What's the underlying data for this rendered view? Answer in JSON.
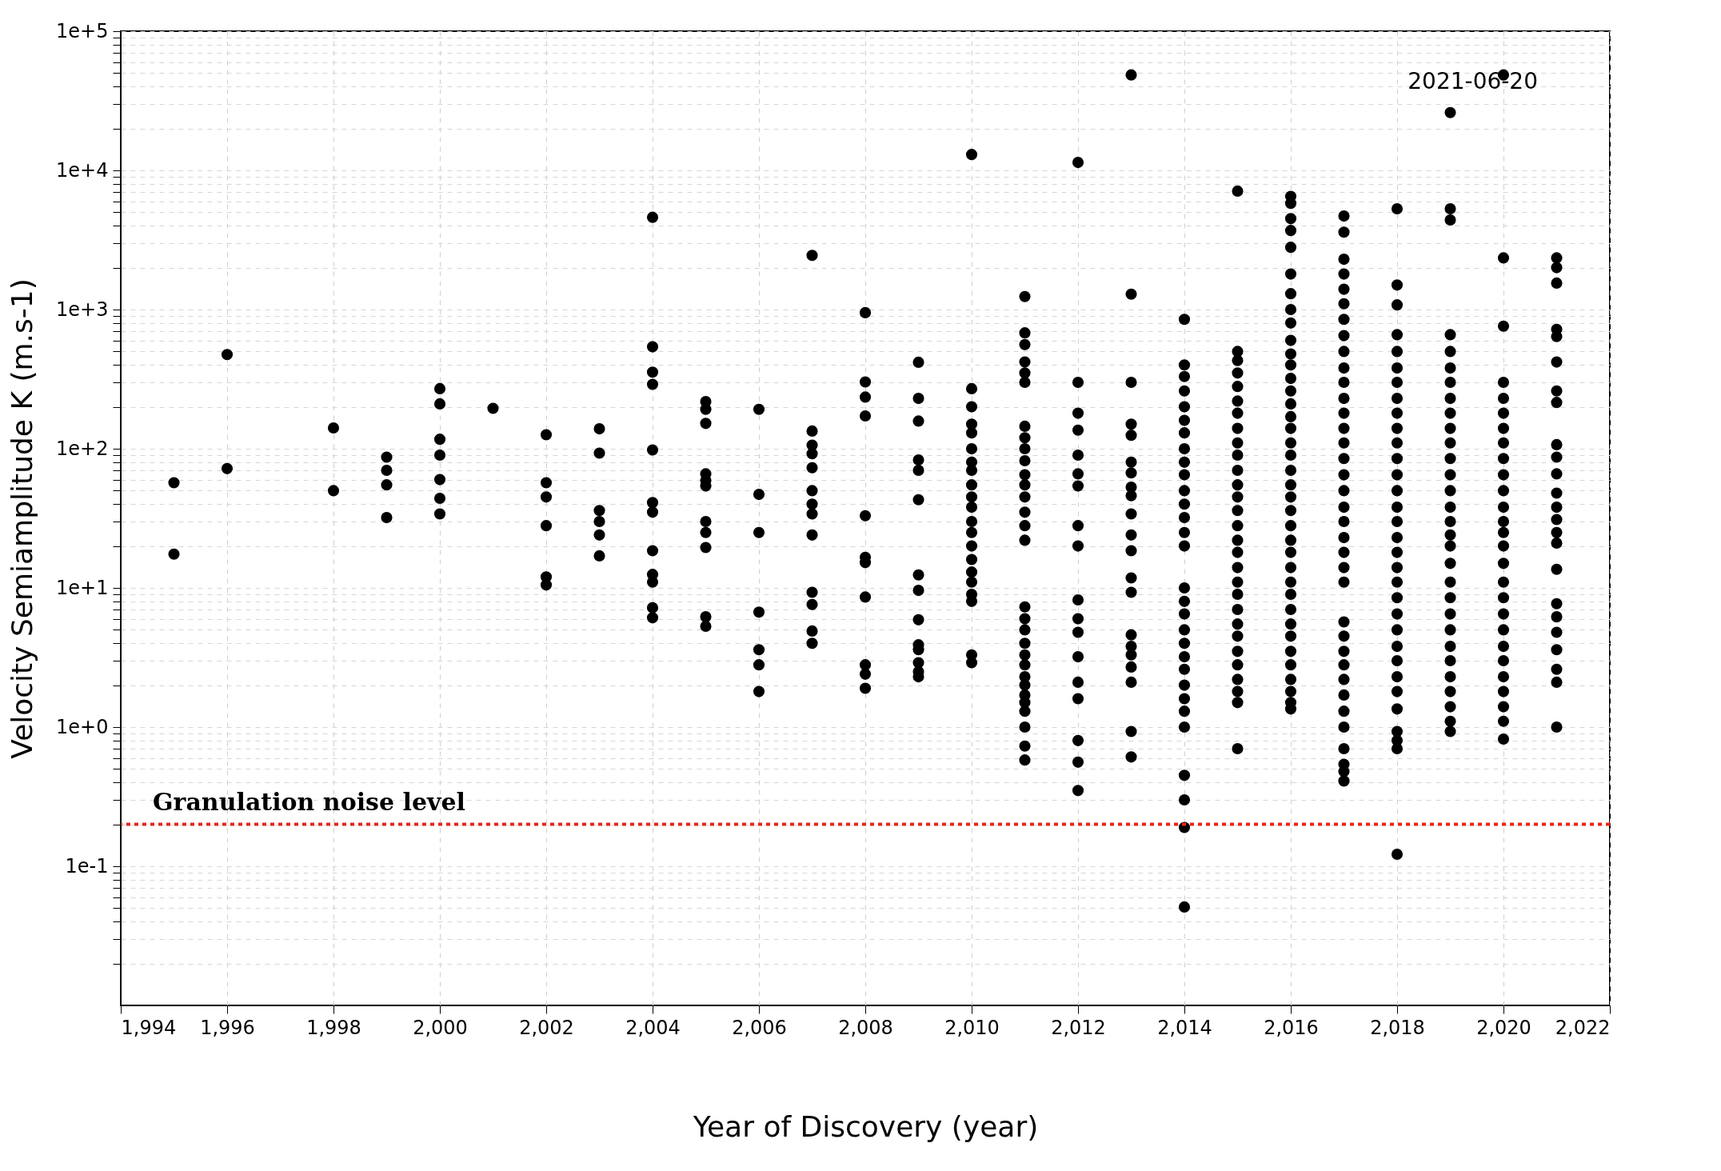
{
  "chart_data": {
    "type": "scatter",
    "xlabel": "Year of Discovery (year)",
    "ylabel": "Velocity Semiamplitude K (m.s-1)",
    "log": "y",
    "grid": true,
    "marker": "circle",
    "xlim": [
      1994,
      2022
    ],
    "xticks": [
      {
        "value": 1994,
        "label": "1,994"
      },
      {
        "value": 1996,
        "label": "1,996"
      },
      {
        "value": 1998,
        "label": "1,998"
      },
      {
        "value": 2000,
        "label": "2,000"
      },
      {
        "value": 2002,
        "label": "2,002"
      },
      {
        "value": 2004,
        "label": "2,004"
      },
      {
        "value": 2006,
        "label": "2,006"
      },
      {
        "value": 2008,
        "label": "2,008"
      },
      {
        "value": 2010,
        "label": "2,010"
      },
      {
        "value": 2012,
        "label": "2,012"
      },
      {
        "value": 2014,
        "label": "2,014"
      },
      {
        "value": 2016,
        "label": "2,016"
      },
      {
        "value": 2018,
        "label": "2,018"
      },
      {
        "value": 2020,
        "label": "2,020"
      },
      {
        "value": 2022,
        "label": "2,022"
      }
    ],
    "ylim": [
      0.01,
      100000
    ],
    "yticks": [
      {
        "value": 0.02,
        "label": null
      },
      {
        "value": 0.03,
        "label": null
      },
      {
        "value": 0.04,
        "label": null
      },
      {
        "value": 0.05,
        "label": null
      },
      {
        "value": 0.06,
        "label": null
      },
      {
        "value": 0.07,
        "label": null
      },
      {
        "value": 0.08,
        "label": null
      },
      {
        "value": 0.09,
        "label": null
      },
      {
        "value": 0.1,
        "label": "1e-1"
      },
      {
        "value": 0.2,
        "label": null
      },
      {
        "value": 0.3,
        "label": null
      },
      {
        "value": 0.4,
        "label": null
      },
      {
        "value": 0.5,
        "label": null
      },
      {
        "value": 0.6,
        "label": null
      },
      {
        "value": 0.7,
        "label": null
      },
      {
        "value": 0.8,
        "label": null
      },
      {
        "value": 0.9,
        "label": null
      },
      {
        "value": 1,
        "label": "1e+0"
      },
      {
        "value": 2,
        "label": null
      },
      {
        "value": 3,
        "label": null
      },
      {
        "value": 4,
        "label": null
      },
      {
        "value": 5,
        "label": null
      },
      {
        "value": 6,
        "label": null
      },
      {
        "value": 7,
        "label": null
      },
      {
        "value": 8,
        "label": null
      },
      {
        "value": 9,
        "label": null
      },
      {
        "value": 10,
        "label": "1e+1"
      },
      {
        "value": 20,
        "label": null
      },
      {
        "value": 30,
        "label": null
      },
      {
        "value": 40,
        "label": null
      },
      {
        "value": 50,
        "label": null
      },
      {
        "value": 60,
        "label": null
      },
      {
        "value": 70,
        "label": null
      },
      {
        "value": 80,
        "label": null
      },
      {
        "value": 90,
        "label": null
      },
      {
        "value": 100,
        "label": "1e+2"
      },
      {
        "value": 200,
        "label": null
      },
      {
        "value": 300,
        "label": null
      },
      {
        "value": 400,
        "label": null
      },
      {
        "value": 500,
        "label": null
      },
      {
        "value": 600,
        "label": null
      },
      {
        "value": 700,
        "label": null
      },
      {
        "value": 800,
        "label": null
      },
      {
        "value": 900,
        "label": null
      },
      {
        "value": 1000,
        "label": "1e+3"
      },
      {
        "value": 2000,
        "label": null
      },
      {
        "value": 3000,
        "label": null
      },
      {
        "value": 4000,
        "label": null
      },
      {
        "value": 5000,
        "label": null
      },
      {
        "value": 6000,
        "label": null
      },
      {
        "value": 7000,
        "label": null
      },
      {
        "value": 8000,
        "label": null
      },
      {
        "value": 9000,
        "label": null
      },
      {
        "value": 10000,
        "label": "1e+4"
      },
      {
        "value": 20000,
        "label": null
      },
      {
        "value": 30000,
        "label": null
      },
      {
        "value": 40000,
        "label": null
      },
      {
        "value": 50000,
        "label": null
      },
      {
        "value": 60000,
        "label": null
      },
      {
        "value": 70000,
        "label": null
      },
      {
        "value": 80000,
        "label": null
      },
      {
        "value": 90000,
        "label": null
      },
      {
        "value": 100000,
        "label": "1e+5"
      }
    ],
    "ref_lines": [
      {
        "axis": "y",
        "value": 0.2,
        "label": "Granulation noise level",
        "color": "#e8261c",
        "line_style": "dotted"
      }
    ],
    "annotations": [
      "2021-06-20"
    ],
    "series": [
      {
        "color": "#000000",
        "x": [
          1995,
          1995
        ],
        "values": [
          57,
          17.5
        ]
      },
      {
        "color": "#000000",
        "x": [
          1996,
          1996
        ],
        "values": [
          475,
          72
        ]
      },
      {
        "color": "#000000",
        "x": [
          1998,
          1998
        ],
        "values": [
          141,
          50
        ]
      },
      {
        "color": "#000000",
        "x": [
          1999,
          1999,
          1999,
          1999
        ],
        "values": [
          87,
          70,
          55,
          32
        ]
      },
      {
        "color": "#000000",
        "x": [
          2000,
          2000,
          2000,
          2000,
          2000,
          2000,
          2000
        ],
        "values": [
          270,
          210,
          117,
          90,
          60,
          44,
          34
        ]
      },
      {
        "color": "#000000",
        "x": [
          2001
        ],
        "values": [
          195
        ]
      },
      {
        "color": "#000000",
        "x": [
          2002,
          2002,
          2002,
          2002,
          2002,
          2002
        ],
        "values": [
          126,
          57,
          45,
          28,
          12,
          10.5
        ]
      },
      {
        "color": "#000000",
        "x": [
          2003,
          2003,
          2003,
          2003,
          2003,
          2003
        ],
        "values": [
          139,
          93,
          36,
          30,
          24,
          17
        ]
      },
      {
        "color": "#000000",
        "x": [
          2004,
          2004,
          2004,
          2004,
          2004,
          2004,
          2004,
          2004,
          2004,
          2004,
          2004,
          2004
        ],
        "values": [
          4600,
          540,
          355,
          290,
          98,
          41,
          35,
          18.5,
          12.5,
          11,
          7.2,
          6.1
        ]
      },
      {
        "color": "#000000",
        "x": [
          2005,
          2005,
          2005,
          2005,
          2005,
          2005,
          2005,
          2005,
          2005,
          2005,
          2005
        ],
        "values": [
          218,
          192,
          152,
          66,
          59,
          54,
          30,
          25,
          19.5,
          6.2,
          5.3
        ]
      },
      {
        "color": "#000000",
        "x": [
          2006,
          2006,
          2006,
          2006,
          2006,
          2006,
          2006
        ],
        "values": [
          192,
          47,
          25,
          6.7,
          3.6,
          2.8,
          1.8
        ]
      },
      {
        "color": "#000000",
        "x": [
          2007,
          2007,
          2007,
          2007,
          2007,
          2007,
          2007,
          2007,
          2007,
          2007,
          2007,
          2007,
          2007
        ],
        "values": [
          2450,
          134,
          106,
          92,
          73,
          50,
          40,
          34,
          24,
          9.3,
          7.6,
          4.9,
          4.0
        ]
      },
      {
        "color": "#000000",
        "x": [
          2008,
          2008,
          2008,
          2008,
          2008,
          2008,
          2008,
          2008,
          2008,
          2008,
          2008
        ],
        "values": [
          950,
          302,
          235,
          172,
          33,
          16.6,
          15.2,
          8.6,
          2.8,
          2.4,
          1.9
        ]
      },
      {
        "color": "#000000",
        "x": [
          2009,
          2009,
          2009,
          2009,
          2009,
          2009,
          2009,
          2009,
          2009,
          2009,
          2009,
          2009,
          2009,
          2009
        ],
        "values": [
          418,
          230,
          158,
          83,
          70,
          43,
          12.4,
          9.6,
          5.9,
          3.9,
          3.6,
          2.9,
          2.5,
          2.3
        ]
      },
      {
        "color": "#000000",
        "x": [
          2010,
          2010,
          2010,
          2010,
          2010,
          2010,
          2010,
          2010,
          2010,
          2010,
          2010,
          2010,
          2010,
          2010,
          2010,
          2010,
          2010,
          2010,
          2010,
          2010,
          2010
        ],
        "values": [
          13000,
          270,
          200,
          150,
          130,
          100,
          80,
          70,
          55,
          45,
          38,
          30,
          25,
          20,
          16,
          13,
          11,
          9,
          8,
          3.3,
          2.9
        ]
      },
      {
        "color": "#000000",
        "x": [
          2011,
          2011,
          2011,
          2011,
          2011,
          2011,
          2011,
          2011,
          2011,
          2011,
          2011,
          2011,
          2011,
          2011,
          2011,
          2011,
          2011,
          2011,
          2011,
          2011,
          2011,
          2011,
          2011,
          2011,
          2011,
          2011,
          2011,
          2011,
          2011,
          2011
        ],
        "values": [
          1240,
          680,
          560,
          420,
          350,
          300,
          145,
          120,
          100,
          82,
          65,
          55,
          45,
          35,
          28,
          22,
          7.3,
          6,
          5,
          4,
          3.3,
          2.8,
          2.3,
          2,
          1.7,
          1.5,
          1.3,
          1,
          0.73,
          0.58
        ]
      },
      {
        "color": "#000000",
        "x": [
          2012,
          2012,
          2012,
          2012,
          2012,
          2012,
          2012,
          2012,
          2012,
          2012,
          2012,
          2012,
          2012,
          2012,
          2012,
          2012,
          2012,
          2012
        ],
        "values": [
          11400,
          300,
          180,
          136,
          90,
          66,
          54,
          28,
          20,
          8.2,
          6,
          4.8,
          3.2,
          2.1,
          1.6,
          0.8,
          0.56,
          0.35
        ]
      },
      {
        "color": "#000000",
        "x": [
          2013,
          2013,
          2013,
          2013,
          2013,
          2013,
          2013,
          2013,
          2013,
          2013,
          2013,
          2013,
          2013,
          2013,
          2013,
          2013,
          2013,
          2013,
          2013,
          2013,
          2013
        ],
        "values": [
          48500,
          1290,
          300,
          150,
          125,
          80,
          67,
          53,
          46,
          34,
          24,
          18.5,
          11.8,
          9.3,
          4.6,
          3.8,
          3.3,
          2.7,
          2.1,
          0.93,
          0.61
        ]
      },
      {
        "color": "#000000",
        "x": [
          2014,
          2014,
          2014,
          2014,
          2014,
          2014,
          2014,
          2014,
          2014,
          2014,
          2014,
          2014,
          2014,
          2014,
          2014,
          2014,
          2014,
          2014,
          2014,
          2014,
          2014,
          2014,
          2014,
          2014,
          2014,
          2014,
          2014,
          2014,
          2014,
          2014
        ],
        "values": [
          850,
          400,
          330,
          260,
          200,
          160,
          130,
          100,
          80,
          65,
          50,
          40,
          32,
          25,
          20,
          10,
          8,
          6.5,
          5,
          4,
          3.2,
          2.6,
          2,
          1.6,
          1.3,
          1,
          0.45,
          0.3,
          0.19,
          0.051
        ]
      },
      {
        "color": "#000000",
        "x": [
          2015,
          2015,
          2015,
          2015,
          2015,
          2015,
          2015,
          2015,
          2015,
          2015,
          2015,
          2015,
          2015,
          2015,
          2015,
          2015,
          2015,
          2015,
          2015,
          2015,
          2015,
          2015,
          2015,
          2015,
          2015,
          2015,
          2015,
          2015,
          2015
        ],
        "values": [
          7100,
          500,
          430,
          350,
          280,
          220,
          180,
          140,
          110,
          90,
          70,
          55,
          45,
          36,
          28,
          22,
          18,
          14,
          11,
          9,
          7,
          5.5,
          4.5,
          3.5,
          2.8,
          2.2,
          1.8,
          1.5,
          0.7
        ]
      },
      {
        "color": "#000000",
        "x": [
          2016,
          2016,
          2016,
          2016,
          2016,
          2016,
          2016,
          2016,
          2016,
          2016,
          2016,
          2016,
          2016,
          2016,
          2016,
          2016,
          2016,
          2016,
          2016,
          2016,
          2016,
          2016,
          2016,
          2016,
          2016,
          2016,
          2016,
          2016,
          2016,
          2016,
          2016,
          2016,
          2016,
          2016,
          2016,
          2016,
          2016,
          2016
        ],
        "values": [
          6500,
          5800,
          4500,
          3700,
          2800,
          1800,
          1300,
          1000,
          800,
          600,
          480,
          400,
          320,
          260,
          210,
          170,
          140,
          110,
          90,
          70,
          55,
          45,
          36,
          28,
          22,
          18,
          14,
          11,
          9,
          7,
          5.5,
          4.5,
          3.5,
          2.8,
          2.2,
          1.8,
          1.5,
          1.35
        ]
      },
      {
        "color": "#000000",
        "x": [
          2017,
          2017,
          2017,
          2017,
          2017,
          2017,
          2017,
          2017,
          2017,
          2017,
          2017,
          2017,
          2017,
          2017,
          2017,
          2017,
          2017,
          2017,
          2017,
          2017,
          2017,
          2017,
          2017,
          2017,
          2017,
          2017,
          2017,
          2017,
          2017,
          2017,
          2017,
          2017,
          2017,
          2017,
          2017,
          2017
        ],
        "values": [
          4700,
          3600,
          2300,
          1800,
          1400,
          1100,
          850,
          650,
          500,
          380,
          300,
          230,
          180,
          140,
          110,
          85,
          65,
          50,
          38,
          30,
          23,
          18,
          14,
          11,
          5.7,
          4.5,
          3.5,
          2.8,
          2.2,
          1.7,
          1.3,
          1,
          0.7,
          0.54,
          0.48,
          0.41
        ]
      },
      {
        "color": "#000000",
        "x": [
          2018,
          2018,
          2018,
          2018,
          2018,
          2018,
          2018,
          2018,
          2018,
          2018,
          2018,
          2018,
          2018,
          2018,
          2018,
          2018,
          2018,
          2018,
          2018,
          2018,
          2018,
          2018,
          2018,
          2018,
          2018,
          2018,
          2018,
          2018,
          2018,
          2018,
          2018,
          2018
        ],
        "values": [
          5300,
          1500,
          1080,
          660,
          500,
          380,
          300,
          230,
          180,
          140,
          110,
          85,
          65,
          50,
          38,
          30,
          23,
          18,
          14,
          11,
          8.5,
          6.5,
          5,
          3.8,
          3,
          2.3,
          1.8,
          1.35,
          0.93,
          0.8,
          0.7,
          0.122
        ]
      },
      {
        "color": "#000000",
        "x": [
          2019,
          2019,
          2019,
          2019,
          2019,
          2019,
          2019,
          2019,
          2019,
          2019,
          2019,
          2019,
          2019,
          2019,
          2019,
          2019,
          2019,
          2019,
          2019,
          2019,
          2019,
          2019,
          2019,
          2019,
          2019,
          2019,
          2019,
          2019,
          2019,
          2019
        ],
        "values": [
          26000,
          5300,
          4400,
          660,
          500,
          380,
          300,
          230,
          180,
          140,
          110,
          85,
          65,
          50,
          38,
          30,
          24,
          20,
          15,
          11,
          8.5,
          6.5,
          5,
          3.8,
          3,
          2.3,
          1.8,
          1.4,
          1.1,
          0.93
        ]
      },
      {
        "color": "#000000",
        "x": [
          2020,
          2020,
          2020,
          2020,
          2020,
          2020,
          2020,
          2020,
          2020,
          2020,
          2020,
          2020,
          2020,
          2020,
          2020,
          2020,
          2020,
          2020,
          2020,
          2020,
          2020,
          2020,
          2020,
          2020,
          2020,
          2020,
          2020
        ],
        "values": [
          48500,
          2350,
          760,
          300,
          230,
          180,
          140,
          110,
          85,
          65,
          50,
          38,
          30,
          25,
          20,
          15,
          11,
          8.5,
          6.5,
          5,
          3.8,
          3,
          2.3,
          1.8,
          1.4,
          1.1,
          0.82
        ]
      },
      {
        "color": "#000000",
        "x": [
          2021,
          2021,
          2021,
          2021,
          2021,
          2021,
          2021,
          2021,
          2021,
          2021,
          2021,
          2021,
          2021,
          2021,
          2021,
          2021,
          2021,
          2021,
          2021,
          2021,
          2021,
          2021,
          2021,
          2021
        ],
        "values": [
          2350,
          2000,
          1550,
          720,
          640,
          420,
          260,
          215,
          107,
          87,
          66,
          48,
          38,
          31,
          25,
          21,
          13.6,
          7.7,
          6.2,
          4.8,
          3.6,
          2.6,
          2.1,
          1.0
        ]
      }
    ]
  }
}
